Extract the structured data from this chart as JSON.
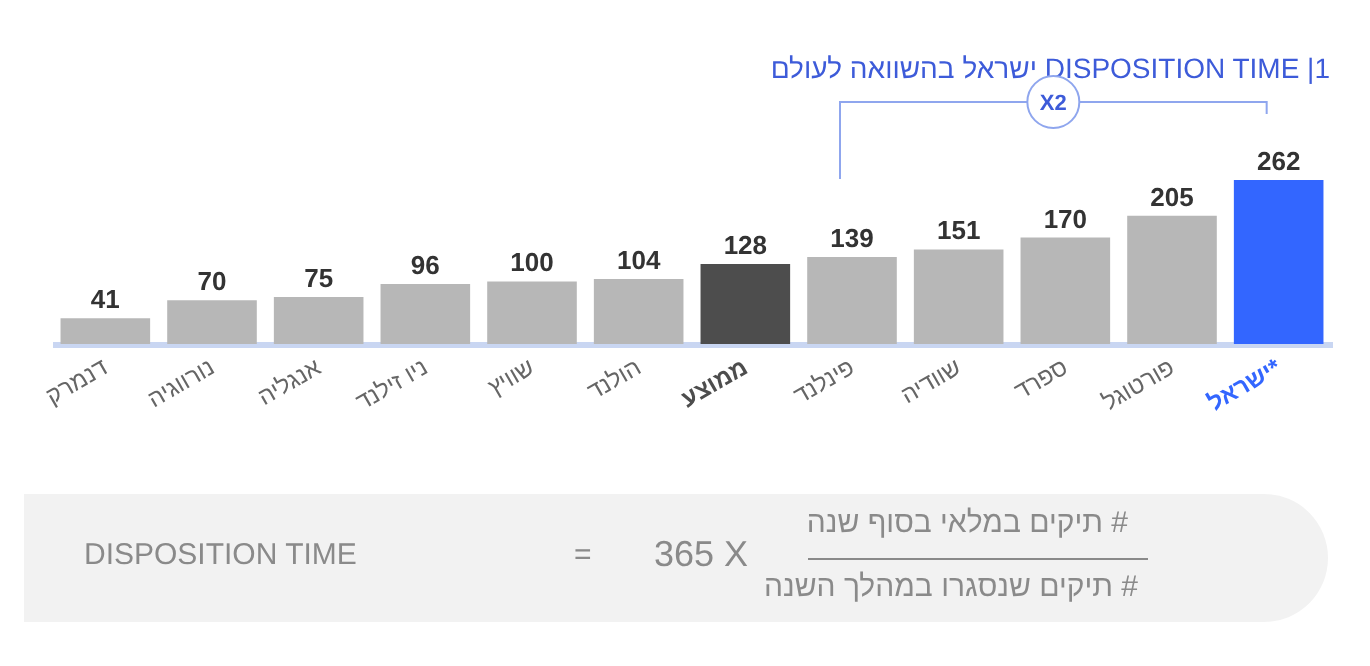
{
  "chart_data": {
    "type": "bar",
    "title": "1| DISPOSITION TIME ישראל בהשוואה לעולם",
    "categories": [
      "דנמרק",
      "נורווגיה",
      "אנגליה",
      "ניו זילנד",
      "שוויץ",
      "הולנד",
      "ממוצע",
      "פינלנד",
      "שוודיה",
      "ספרד",
      "פורטוגל",
      "ישראל*"
    ],
    "values": [
      41,
      70,
      75,
      96,
      100,
      104,
      128,
      139,
      151,
      170,
      205,
      262
    ],
    "colors": [
      "#b7b7b7",
      "#b7b7b7",
      "#b7b7b7",
      "#b7b7b7",
      "#b7b7b7",
      "#b7b7b7",
      "#4d4d4d",
      "#b7b7b7",
      "#b7b7b7",
      "#b7b7b7",
      "#b7b7b7",
      "#3366ff"
    ],
    "data_labels": true,
    "annotations": [
      "X2",
      "DISPOSITION TIME",
      "=",
      "365 X",
      "# תיקים במלאי בסוף שנה",
      "# תיקים שנסגרו במהלך השנה"
    ]
  }
}
